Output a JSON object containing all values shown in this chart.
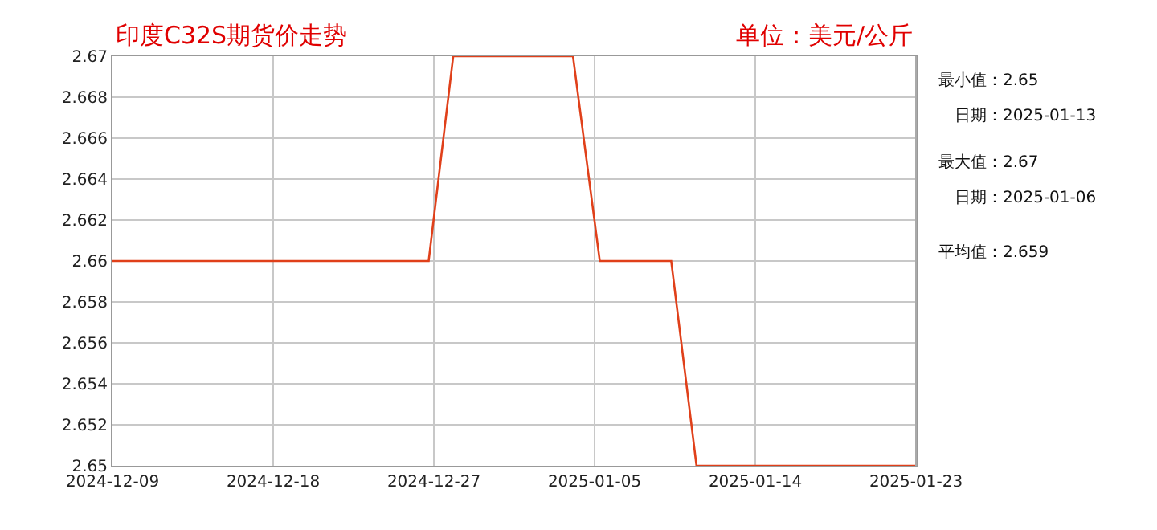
{
  "chart_data": {
    "type": "line",
    "title": "印度C32S期货价走势",
    "subtitle": "单位：美元/公斤",
    "x": [
      "2024-12-09",
      "2024-12-26T17:00",
      "2024-12-28T02:00",
      "2025-01-03T19:00",
      "2025-01-05T07:00",
      "2025-01-09T07:00",
      "2025-01-10T17:00",
      "2025-01-23"
    ],
    "series": [
      {
        "color": "#e0401a",
        "values": [
          2.66,
          2.66,
          2.67,
          2.67,
          2.66,
          2.66,
          2.65,
          2.65
        ]
      }
    ],
    "xlim": [
      "2024-12-09",
      "2025-01-23"
    ],
    "xticks": [
      {
        "value": "2024-12-09",
        "label": "2024-12-09"
      },
      {
        "value": "2024-12-18",
        "label": "2024-12-18"
      },
      {
        "value": "2024-12-27",
        "label": "2024-12-27"
      },
      {
        "value": "2025-01-05",
        "label": "2025-01-05"
      },
      {
        "value": "2025-01-14",
        "label": "2025-01-14"
      },
      {
        "value": "2025-01-23",
        "label": "2025-01-23"
      }
    ],
    "ylim": [
      2.65,
      2.67
    ],
    "yticks": [
      2.65,
      2.652,
      2.654,
      2.656,
      2.658,
      2.66,
      2.662,
      2.664,
      2.666,
      2.668,
      2.67
    ],
    "annotations": [
      "最小值：2.65",
      "日期：2025-01-13",
      "最大值：2.67",
      "日期：2025-01-06",
      "平均值：2.659"
    ],
    "grid": true,
    "legend": false,
    "marker": "none",
    "line_style": "solid"
  }
}
